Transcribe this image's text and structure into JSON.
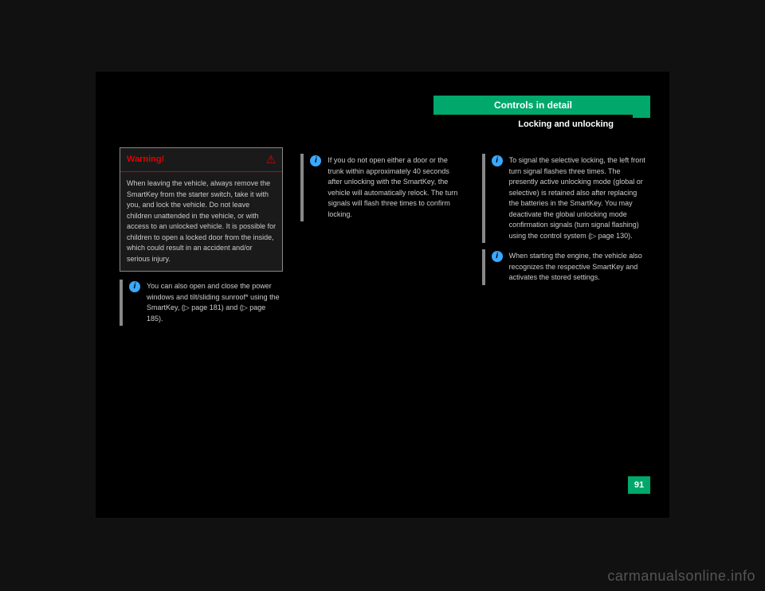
{
  "header": {
    "tab": "Controls in detail",
    "sub": "Locking and unlocking"
  },
  "col1": {
    "warning_title": "Warning!",
    "warning_body": "When leaving the vehicle, always remove the SmartKey from the starter switch, take it with you, and lock the vehicle. Do not leave children unattended in the vehicle, or with access to an unlocked vehicle. It is possible for children to open a locked door from the inside, which could result in an accident and/or serious injury.",
    "info1": "You can also open and close the power windows and tilt/sliding sunroof* using the SmartKey, (▷ page 181) and (▷ page 185)."
  },
  "col2": {
    "info1": "If you do not open either a door or the trunk within approximately 40 seconds after unlocking with the SmartKey, the vehicle will automatically relock. The turn signals will flash three times to confirm locking."
  },
  "col3": {
    "info1": "To signal the selective locking, the left front turn signal flashes three times. The presently active unlocking mode (global or selective) is retained also after replacing the batteries in the SmartKey. You may deactivate the global unlocking mode confirmation signals (turn signal flashing) using the control system (▷ page 130).",
    "info2": "When starting the engine, the vehicle also recognizes the respective SmartKey and activates the stored settings."
  },
  "page_number": "91",
  "watermark": "carmanualsonline.info",
  "colors": {
    "accent": "#00a86b",
    "info_icon": "#3aa8ff",
    "warning": "#e10000",
    "bg": "#111"
  }
}
